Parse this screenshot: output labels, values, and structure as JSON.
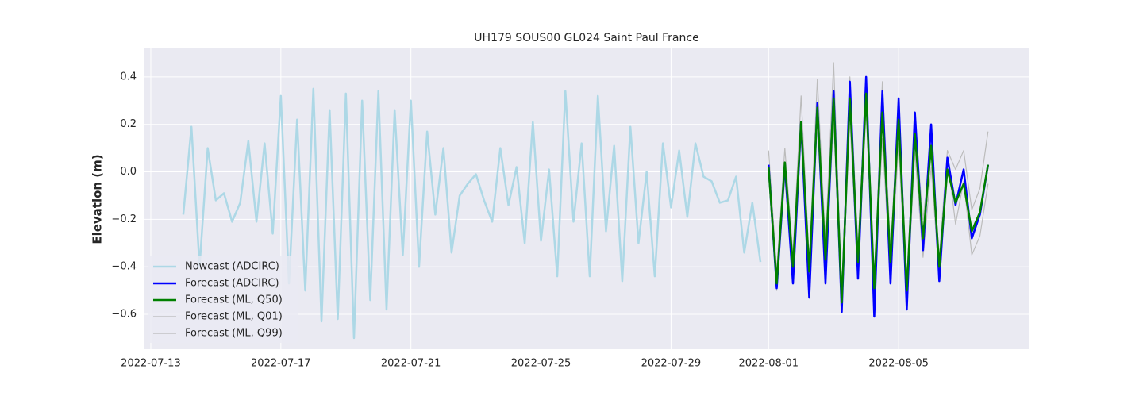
{
  "chart_data": {
    "type": "line",
    "title": "UH179 SOUS00 GL024 Saint Paul France",
    "y_label": "Elevation (m)",
    "xlim": [
      "2022-07-12 19:20",
      "2022-08-09 00:00"
    ],
    "xticks": [
      "2022-07-13",
      "2022-07-17",
      "2022-07-21",
      "2022-07-25",
      "2022-07-29",
      "2022-08-01",
      "2022-08-05"
    ],
    "ylim": [
      -0.747,
      0.52
    ],
    "yticks": [
      {
        "value": -0.6,
        "label": "−0.6"
      },
      {
        "value": -0.4,
        "label": "−0.4"
      },
      {
        "value": -0.2,
        "label": "−0.2"
      },
      {
        "value": 0,
        "label": "0.0"
      },
      0.2,
      0.4
    ],
    "grid": true,
    "background": "#eaeaf2",
    "legend": "lower left",
    "series": [
      {
        "name": "Nowcast (ADCIRC)",
        "color": "#add8e6",
        "linewidth": 2.5,
        "x": [
          "2022-07-14 00:00",
          "2022-07-14 06:00",
          "2022-07-14 12:00",
          "2022-07-14 18:00",
          "2022-07-15 00:00",
          "2022-07-15 06:00",
          "2022-07-15 12:00",
          "2022-07-15 18:00",
          "2022-07-16 00:00",
          "2022-07-16 06:00",
          "2022-07-16 12:00",
          "2022-07-16 18:00",
          "2022-07-17 00:00",
          "2022-07-17 06:00",
          "2022-07-17 12:00",
          "2022-07-17 18:00",
          "2022-07-18 00:00",
          "2022-07-18 06:00",
          "2022-07-18 12:00",
          "2022-07-18 18:00",
          "2022-07-19 00:00",
          "2022-07-19 06:00",
          "2022-07-19 12:00",
          "2022-07-19 18:00",
          "2022-07-20 00:00",
          "2022-07-20 06:00",
          "2022-07-20 12:00",
          "2022-07-20 18:00",
          "2022-07-21 00:00",
          "2022-07-21 06:00",
          "2022-07-21 12:00",
          "2022-07-21 18:00",
          "2022-07-22 00:00",
          "2022-07-22 06:00",
          "2022-07-22 12:00",
          "2022-07-22 18:00",
          "2022-07-23 00:00",
          "2022-07-23 06:00",
          "2022-07-23 12:00",
          "2022-07-23 18:00",
          "2022-07-24 00:00",
          "2022-07-24 06:00",
          "2022-07-24 12:00",
          "2022-07-24 18:00",
          "2022-07-25 00:00",
          "2022-07-25 06:00",
          "2022-07-25 12:00",
          "2022-07-25 18:00",
          "2022-07-26 00:00",
          "2022-07-26 06:00",
          "2022-07-26 12:00",
          "2022-07-26 18:00",
          "2022-07-27 00:00",
          "2022-07-27 06:00",
          "2022-07-27 12:00",
          "2022-07-27 18:00",
          "2022-07-28 00:00",
          "2022-07-28 06:00",
          "2022-07-28 12:00",
          "2022-07-28 18:00",
          "2022-07-29 00:00",
          "2022-07-29 06:00",
          "2022-07-29 12:00",
          "2022-07-29 18:00",
          "2022-07-30 00:00",
          "2022-07-30 06:00",
          "2022-07-30 12:00",
          "2022-07-30 18:00",
          "2022-07-31 00:00",
          "2022-07-31 06:00",
          "2022-07-31 12:00",
          "2022-07-31 18:00"
        ],
        "values": [
          -0.18,
          0.19,
          -0.4,
          0.1,
          -0.12,
          -0.09,
          -0.21,
          -0.13,
          0.13,
          -0.21,
          0.12,
          -0.26,
          0.32,
          -0.47,
          0.22,
          -0.5,
          0.35,
          -0.63,
          0.26,
          -0.62,
          0.33,
          -0.7,
          0.3,
          -0.54,
          0.34,
          -0.58,
          0.26,
          -0.35,
          0.3,
          -0.4,
          0.17,
          -0.18,
          0.1,
          -0.34,
          -0.1,
          -0.05,
          -0.01,
          -0.12,
          -0.21,
          0.1,
          -0.14,
          0.02,
          -0.3,
          0.21,
          -0.29,
          0.01,
          -0.44,
          0.34,
          -0.21,
          0.12,
          -0.44,
          0.32,
          -0.25,
          0.11,
          -0.46,
          0.19,
          -0.3,
          0.0,
          -0.44,
          0.12,
          -0.15,
          0.09,
          -0.19,
          0.12,
          -0.02,
          -0.04,
          -0.13,
          -0.12,
          -0.02,
          -0.34,
          -0.13,
          -0.38
        ]
      },
      {
        "name": "Forecast (ADCIRC)",
        "color": "#0000ff",
        "linewidth": 2.5,
        "x": [
          "2022-08-01 00:00",
          "2022-08-01 06:00",
          "2022-08-01 12:00",
          "2022-08-01 18:00",
          "2022-08-02 00:00",
          "2022-08-02 06:00",
          "2022-08-02 12:00",
          "2022-08-02 18:00",
          "2022-08-03 00:00",
          "2022-08-03 06:00",
          "2022-08-03 12:00",
          "2022-08-03 18:00",
          "2022-08-04 00:00",
          "2022-08-04 06:00",
          "2022-08-04 12:00",
          "2022-08-04 18:00",
          "2022-08-05 00:00",
          "2022-08-05 06:00",
          "2022-08-05 12:00",
          "2022-08-05 18:00",
          "2022-08-06 00:00",
          "2022-08-06 06:00",
          "2022-08-06 12:00",
          "2022-08-06 18:00",
          "2022-08-07 00:00",
          "2022-08-07 06:00",
          "2022-08-07 12:00",
          "2022-08-07 18:00"
        ],
        "values": [
          0.03,
          -0.49,
          0.03,
          -0.47,
          0.21,
          -0.53,
          0.29,
          -0.47,
          0.34,
          -0.59,
          0.38,
          -0.45,
          0.4,
          -0.61,
          0.34,
          -0.47,
          0.31,
          -0.58,
          0.25,
          -0.33,
          0.2,
          -0.46,
          0.06,
          -0.14,
          0.01,
          -0.28,
          -0.18,
          0.03
        ]
      },
      {
        "name": "Forecast (ML, Q50)",
        "color": "#008000",
        "linewidth": 2.5,
        "x": [
          "2022-08-01 00:00",
          "2022-08-01 06:00",
          "2022-08-01 12:00",
          "2022-08-01 18:00",
          "2022-08-02 00:00",
          "2022-08-02 06:00",
          "2022-08-02 12:00",
          "2022-08-02 18:00",
          "2022-08-03 00:00",
          "2022-08-03 06:00",
          "2022-08-03 12:00",
          "2022-08-03 18:00",
          "2022-08-04 00:00",
          "2022-08-04 06:00",
          "2022-08-04 12:00",
          "2022-08-04 18:00",
          "2022-08-05 00:00",
          "2022-08-05 06:00",
          "2022-08-05 12:00",
          "2022-08-05 18:00",
          "2022-08-06 00:00",
          "2022-08-06 06:00",
          "2022-08-06 12:00",
          "2022-08-06 18:00",
          "2022-08-07 00:00",
          "2022-08-07 06:00",
          "2022-08-07 12:00",
          "2022-08-07 18:00"
        ],
        "values": [
          0.02,
          -0.47,
          0.04,
          -0.4,
          0.21,
          -0.42,
          0.27,
          -0.37,
          0.31,
          -0.55,
          0.31,
          -0.38,
          0.33,
          -0.49,
          0.25,
          -0.38,
          0.22,
          -0.5,
          0.16,
          -0.28,
          0.11,
          -0.4,
          0.01,
          -0.13,
          -0.05,
          -0.25,
          -0.17,
          0.03
        ]
      },
      {
        "name": "Forecast (ML, Q01)",
        "color": "#bbbbbb",
        "linewidth": 1.2,
        "x": [
          "2022-08-01 00:00",
          "2022-08-01 06:00",
          "2022-08-01 12:00",
          "2022-08-01 18:00",
          "2022-08-02 00:00",
          "2022-08-02 06:00",
          "2022-08-02 12:00",
          "2022-08-02 18:00",
          "2022-08-03 00:00",
          "2022-08-03 06:00",
          "2022-08-03 12:00",
          "2022-08-03 18:00",
          "2022-08-04 00:00",
          "2022-08-04 06:00",
          "2022-08-04 12:00",
          "2022-08-04 18:00",
          "2022-08-05 00:00",
          "2022-08-05 06:00",
          "2022-08-05 12:00",
          "2022-08-05 18:00",
          "2022-08-06 00:00",
          "2022-08-06 06:00",
          "2022-08-06 12:00",
          "2022-08-06 18:00",
          "2022-08-07 00:00",
          "2022-08-07 06:00",
          "2022-08-07 12:00",
          "2022-08-07 18:00"
        ],
        "values": [
          -0.02,
          -0.5,
          -0.02,
          -0.45,
          0.15,
          -0.45,
          0.2,
          -0.43,
          0.22,
          -0.58,
          0.22,
          -0.44,
          0.26,
          -0.52,
          0.14,
          -0.44,
          0.12,
          -0.56,
          0.08,
          -0.36,
          0.02,
          -0.45,
          0.06,
          -0.22,
          -0.04,
          -0.35,
          -0.27,
          -0.05
        ]
      },
      {
        "name": "Forecast (ML, Q99)",
        "color": "#bbbbbb",
        "linewidth": 1.2,
        "x": [
          "2022-08-01 00:00",
          "2022-08-01 06:00",
          "2022-08-01 12:00",
          "2022-08-01 18:00",
          "2022-08-02 00:00",
          "2022-08-02 06:00",
          "2022-08-02 12:00",
          "2022-08-02 18:00",
          "2022-08-03 00:00",
          "2022-08-03 06:00",
          "2022-08-03 12:00",
          "2022-08-03 18:00",
          "2022-08-04 00:00",
          "2022-08-04 06:00",
          "2022-08-04 12:00",
          "2022-08-04 18:00",
          "2022-08-05 00:00",
          "2022-08-05 06:00",
          "2022-08-05 12:00",
          "2022-08-05 18:00",
          "2022-08-06 00:00",
          "2022-08-06 06:00",
          "2022-08-06 12:00",
          "2022-08-06 18:00",
          "2022-08-07 00:00",
          "2022-08-07 06:00",
          "2022-08-07 12:00",
          "2022-08-07 18:00"
        ],
        "values": [
          0.09,
          -0.42,
          0.1,
          -0.35,
          0.32,
          -0.38,
          0.39,
          -0.3,
          0.46,
          -0.5,
          0.4,
          -0.32,
          0.38,
          -0.46,
          0.38,
          -0.33,
          0.28,
          -0.45,
          0.2,
          -0.2,
          0.1,
          -0.36,
          0.09,
          0.01,
          0.09,
          -0.16,
          -0.07,
          0.17
        ]
      }
    ]
  }
}
